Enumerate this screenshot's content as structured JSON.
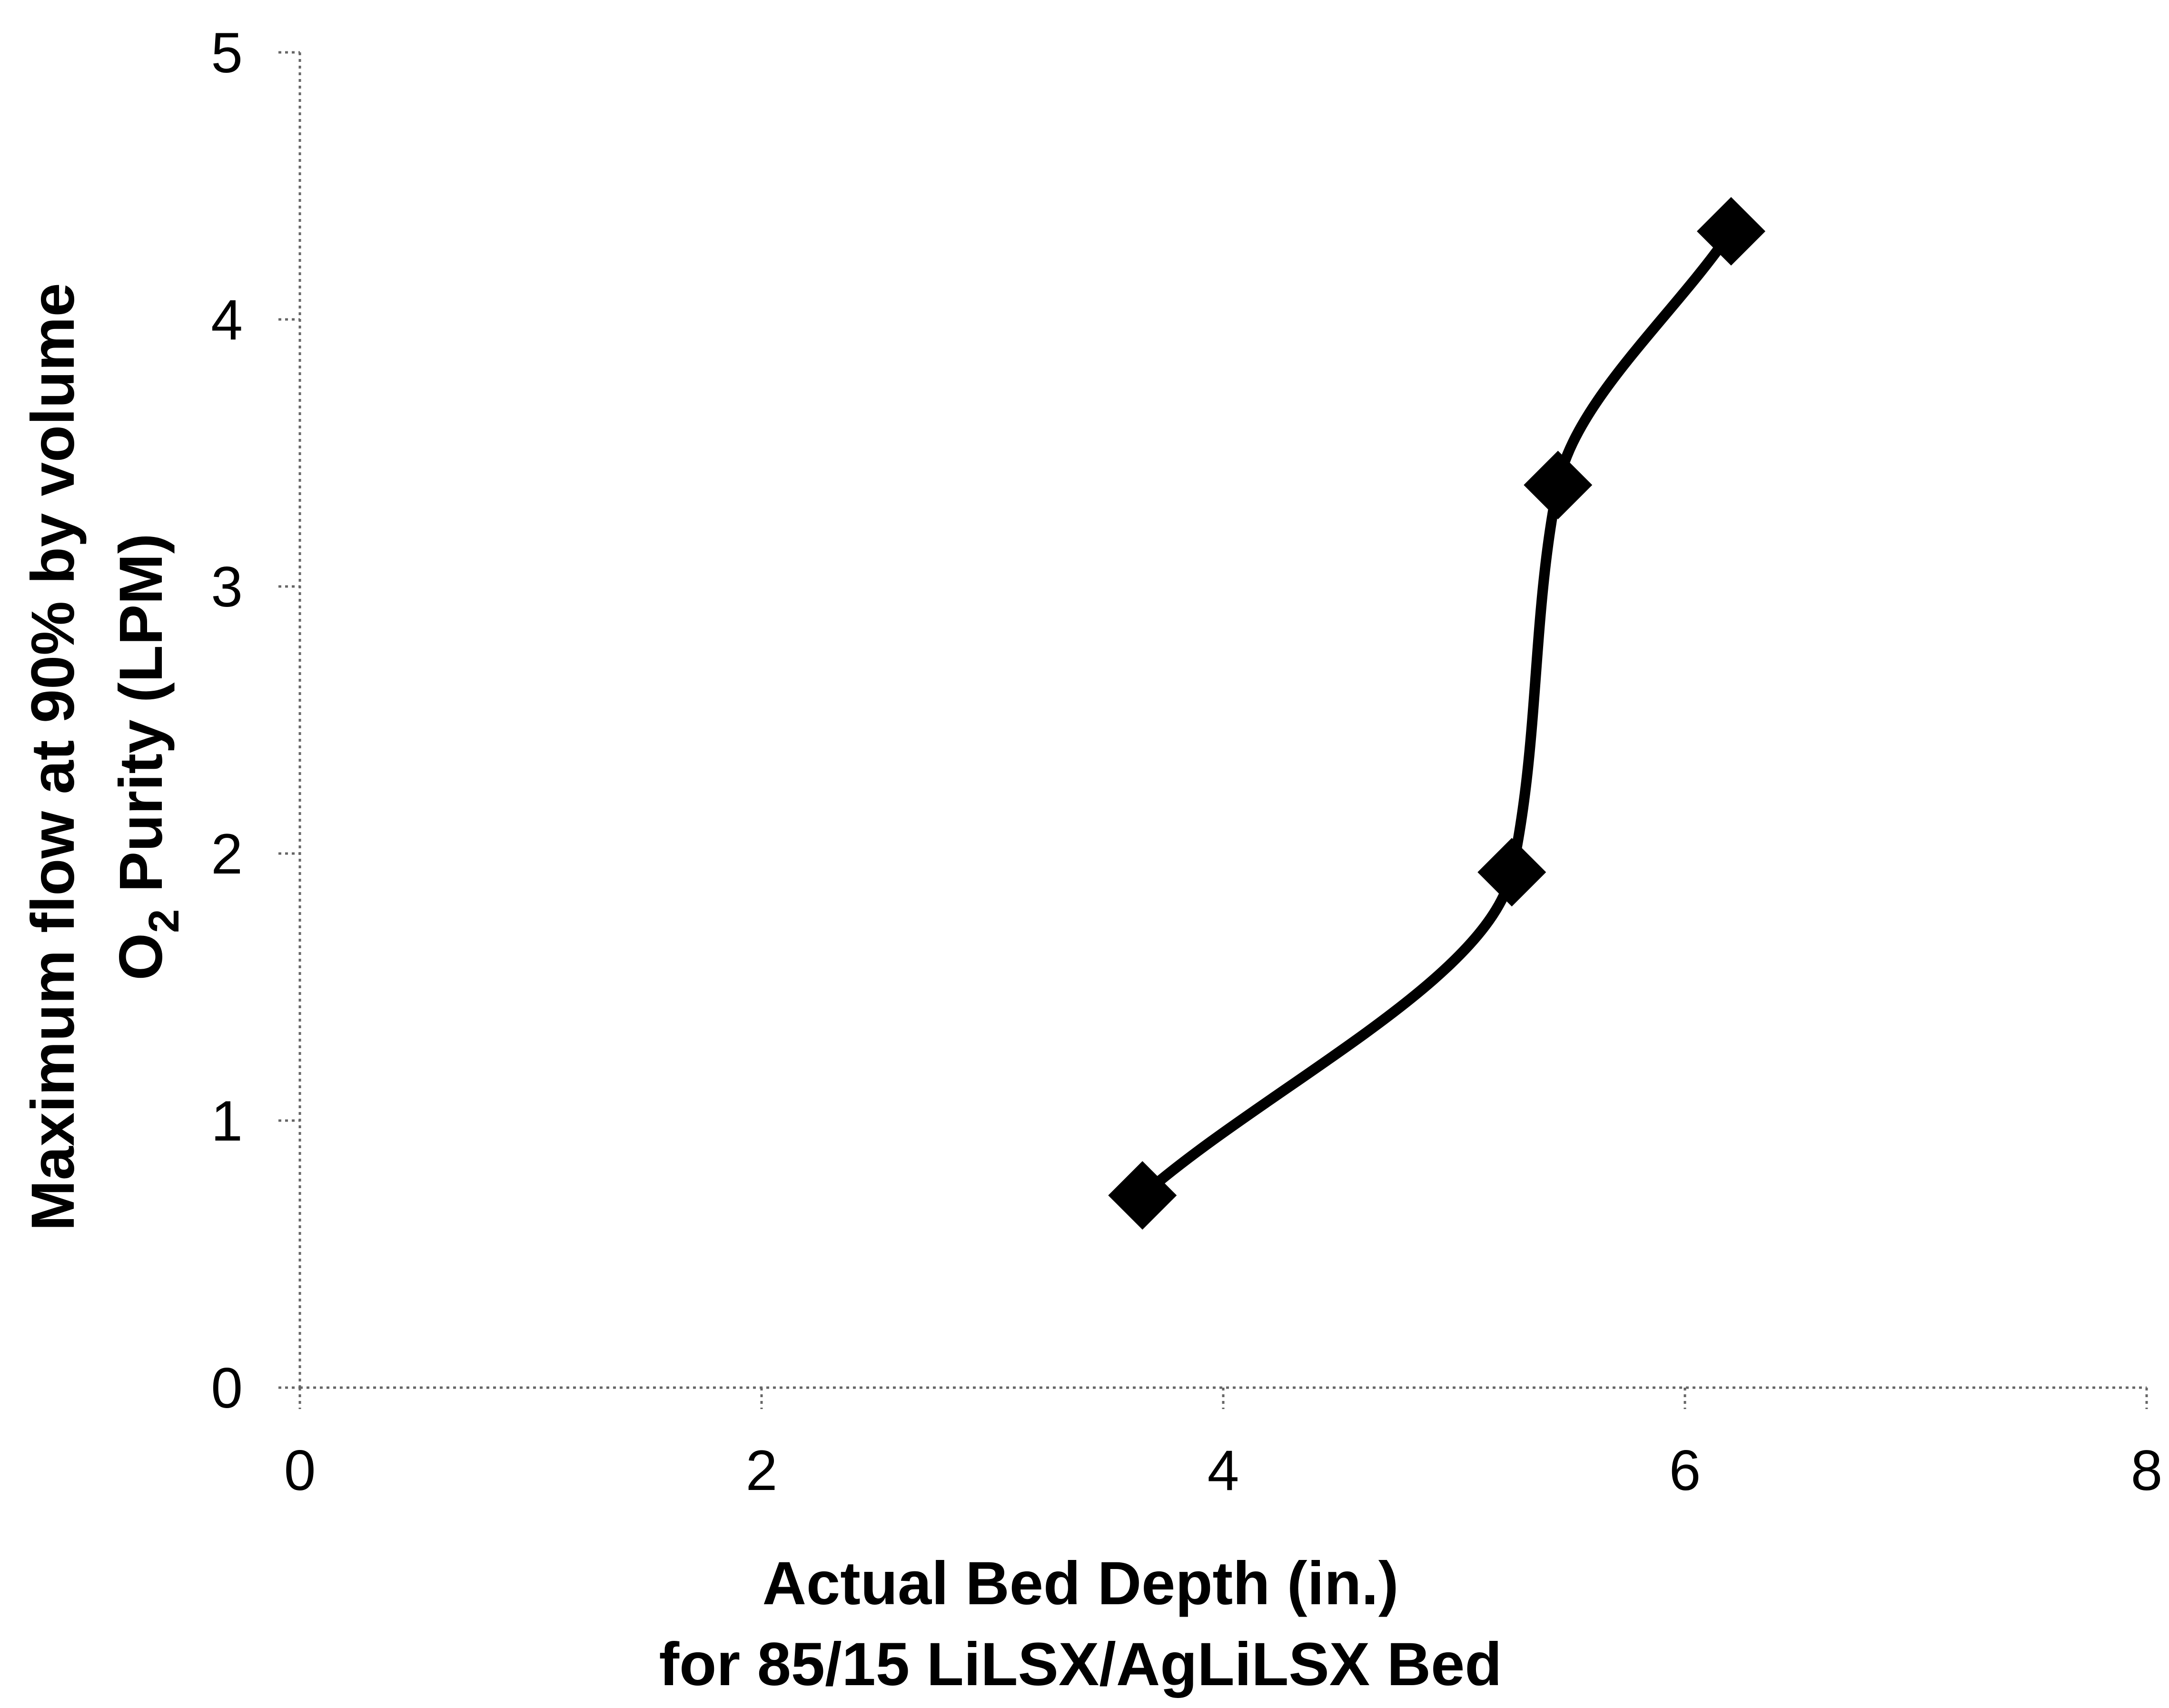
{
  "chart_data": {
    "type": "line",
    "title": "",
    "xlabel_lines": [
      "Actual Bed Depth (in.)",
      "for 85/15 LiLSX/AgLiLSX Bed"
    ],
    "ylabel_line1": "Maximum flow at 90%  by volume",
    "ylabel_line2": {
      "pre": "O",
      "sub": "2",
      "post": " Purity (LPM)"
    },
    "xlim": [
      0,
      8
    ],
    "ylim": [
      0,
      5
    ],
    "xticks": [
      0,
      2,
      4,
      6,
      8
    ],
    "yticks": [
      0,
      1,
      2,
      3,
      4,
      5
    ],
    "grid": false,
    "legend": "none",
    "series": [
      {
        "x": [
          3.65,
          5.25,
          5.45,
          6.2
        ],
        "y": [
          0.72,
          1.93,
          3.38,
          4.33
        ],
        "color": "#000000",
        "marker": "diamond",
        "smooth": true
      }
    ]
  }
}
